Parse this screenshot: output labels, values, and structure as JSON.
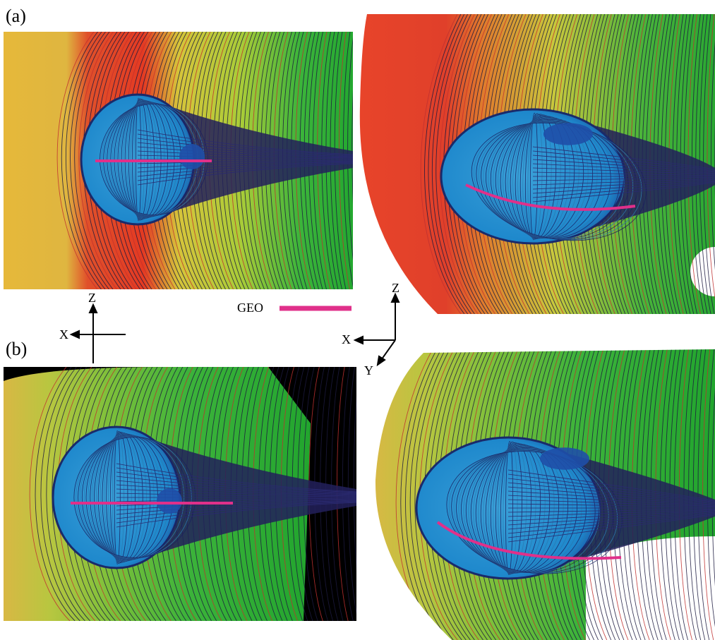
{
  "panels": {
    "a": "(a)",
    "b": "(b)"
  },
  "legend": {
    "label": "GEO"
  },
  "axes_2d": {
    "z": "Z",
    "x": "X"
  },
  "axes_3d": {
    "z": "Z",
    "x": "X",
    "y": "Y"
  }
}
